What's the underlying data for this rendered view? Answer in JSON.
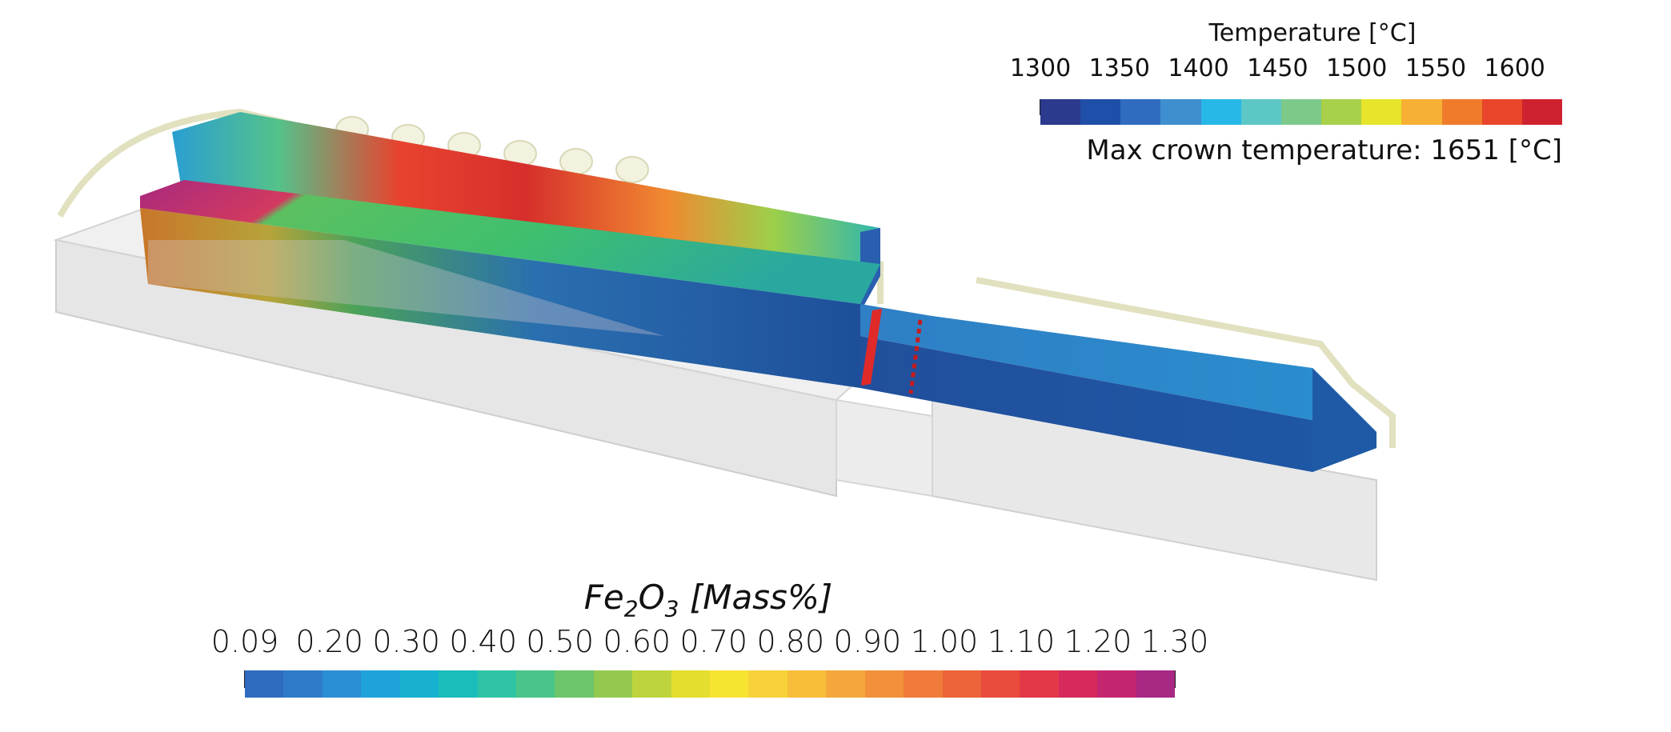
{
  "temperature_legend": {
    "title": "Temperature [°C]",
    "ticks": [
      "1300",
      "1350",
      "1400",
      "1450",
      "1500",
      "1550",
      "1600"
    ],
    "range": [
      1300,
      1630
    ],
    "colors": [
      "#2b3a8c",
      "#1f4fa8",
      "#2f6cbf",
      "#3e8fd0",
      "#27b8e8",
      "#5cc7c5",
      "#7cc98a",
      "#a8d04a",
      "#e6e42b",
      "#f7b035",
      "#f07c2b",
      "#e8452a",
      "#cf2230"
    ],
    "max_crown_label": "Max crown temperature: 1651 [°C]"
  },
  "fe2o3_legend": {
    "title_main": "Fe",
    "title_sub1": "2",
    "title_mid": "O",
    "title_sub2": "3",
    "title_unit": " [Mass%]",
    "ticks": [
      "0.09",
      "0.20",
      "0.30",
      "0.40",
      "0.50",
      "0.60",
      "0.70",
      "0.80",
      "0.90",
      "1.00",
      "1.10",
      "1.20",
      "1.30"
    ],
    "tick_values": [
      0.09,
      0.2,
      0.3,
      0.4,
      0.5,
      0.6,
      0.7,
      0.8,
      0.9,
      1.0,
      1.1,
      1.2,
      1.3
    ],
    "range": [
      0.09,
      1.3
    ],
    "colors": [
      "#2f6bbf",
      "#2f7bc9",
      "#2a8fd4",
      "#1fa2d8",
      "#17b1cf",
      "#1bbdbb",
      "#2fc4a3",
      "#49c48a",
      "#6cc56b",
      "#93c94f",
      "#bfd43c",
      "#e4de2e",
      "#f6e431",
      "#f7d339",
      "#f7bd3b",
      "#f5a73d",
      "#f2903c",
      "#ef7a3a",
      "#ec6239",
      "#e94b3c",
      "#e23848",
      "#d62a5c",
      "#c42570",
      "#a82883"
    ]
  }
}
